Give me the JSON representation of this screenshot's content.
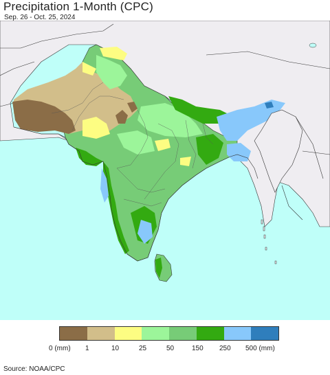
{
  "title": "Precipitation 1-Month (CPC)",
  "subtitle": "Sep. 26 - Oct. 25, 2024",
  "legend": {
    "colors": [
      "#8b6d47",
      "#d2be8a",
      "#fdfd82",
      "#9cf59a",
      "#77cc77",
      "#33aa11",
      "#88c8fb",
      "#2f7ebc"
    ],
    "labels": [
      "0 (mm)",
      "1",
      "10",
      "25",
      "50",
      "150",
      "250",
      "500 (mm)"
    ]
  },
  "source": "Source: NOAA/CPC",
  "colors": {
    "ocean": "#bffff9",
    "land_outside": "#efedf1",
    "border": "#333333"
  }
}
